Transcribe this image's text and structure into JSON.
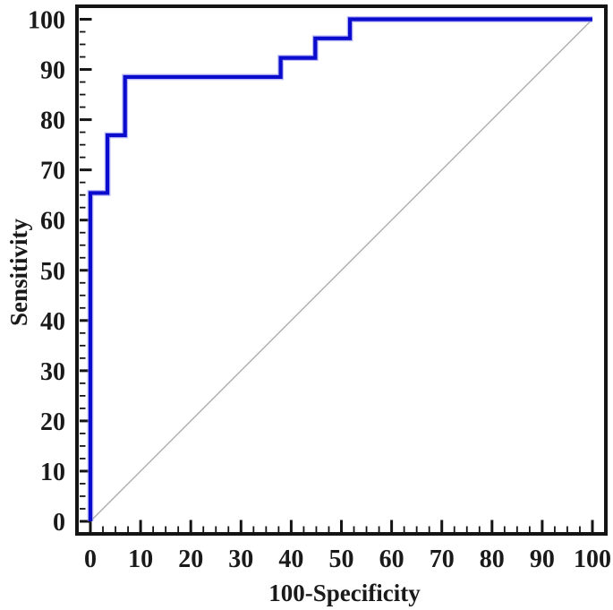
{
  "chart_data": {
    "type": "line",
    "subtype": "roc-step-curve",
    "title": "",
    "xlabel": "100-Specificity",
    "ylabel": "Sensitivity",
    "xlim": [
      0,
      100
    ],
    "ylim": [
      0,
      100
    ],
    "x_major_ticks": [
      0,
      10,
      20,
      30,
      40,
      50,
      60,
      70,
      80,
      90,
      100
    ],
    "y_major_ticks": [
      0,
      10,
      20,
      30,
      40,
      50,
      60,
      70,
      80,
      90,
      100
    ],
    "minor_tick_step": 2.5,
    "grid": false,
    "legend_position": "none",
    "series": [
      {
        "name": "roc-curve",
        "color": "#0b0bce",
        "halo_color": "#8c8cf0",
        "line_width": 4.2,
        "points": [
          [
            0,
            0
          ],
          [
            0,
            65.4
          ],
          [
            3.4,
            65.4
          ],
          [
            3.4,
            76.9
          ],
          [
            6.9,
            76.9
          ],
          [
            6.9,
            88.5
          ],
          [
            37.9,
            88.5
          ],
          [
            37.9,
            92.3
          ],
          [
            44.8,
            92.3
          ],
          [
            44.8,
            96.2
          ],
          [
            51.7,
            96.2
          ],
          [
            51.7,
            100
          ],
          [
            100,
            100
          ]
        ]
      },
      {
        "name": "reference-diagonal",
        "color": "#aeaeae",
        "line_width": 1.4,
        "points": [
          [
            0,
            0
          ],
          [
            100,
            100
          ]
        ]
      }
    ],
    "axis_color": "#141414",
    "background_color": "#ffffff"
  }
}
